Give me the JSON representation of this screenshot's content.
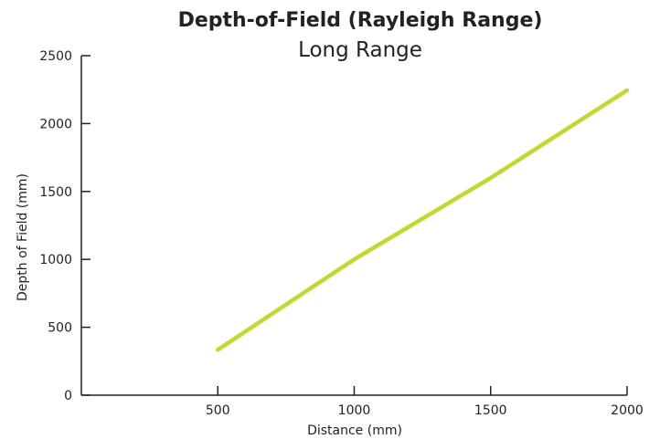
{
  "chart_data": {
    "type": "line",
    "title": "Depth-of-Field (Rayleigh Range)",
    "subtitle": "Long Range",
    "xlabel": "Distance (mm)",
    "ylabel": "Depth of Field (mm)",
    "xlim": [
      0,
      2000
    ],
    "ylim": [
      0,
      2500
    ],
    "x_ticks": [
      500,
      1000,
      1500,
      2000
    ],
    "y_ticks": [
      0,
      500,
      1000,
      1500,
      2000,
      2500
    ],
    "grid": false,
    "series": [
      {
        "color": "#c3d82e",
        "x": [
          500,
          1000,
          1500,
          2000
        ],
        "y": [
          335,
          1000,
          1600,
          2245
        ]
      }
    ]
  }
}
